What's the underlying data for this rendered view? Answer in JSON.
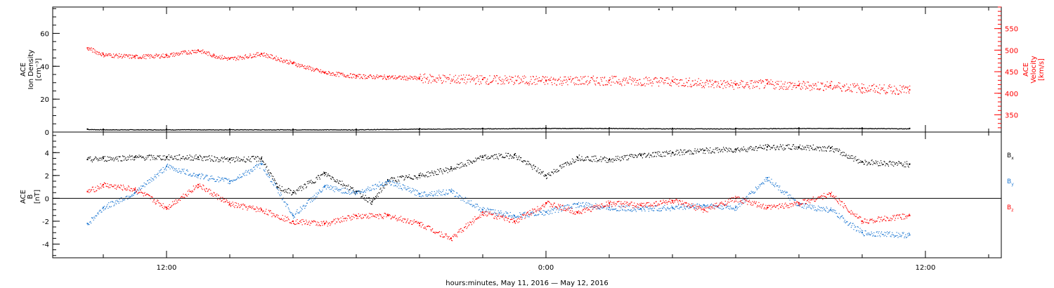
{
  "chart_data": [
    {
      "type": "scatter",
      "panel": "top",
      "ylabel_lines": [
        "ACE",
        "Ion Density",
        "[cm⁻³]"
      ],
      "ylim": [
        0,
        76
      ],
      "yticks": [
        0,
        20,
        40,
        60
      ],
      "y2label_lines": [
        "ACE",
        "Velocity",
        "[km/s]"
      ],
      "y2lim": [
        310,
        600
      ],
      "y2ticks": [
        350,
        400,
        450,
        500,
        550
      ],
      "series": [
        {
          "color": "#000000",
          "axis": "left",
          "x": [
            9.5,
            10,
            12,
            14,
            16,
            18,
            20,
            22,
            24,
            26,
            28,
            30,
            32,
            34,
            35.5
          ],
          "values": [
            1.8,
            1.6,
            1.6,
            1.6,
            1.6,
            1.6,
            2.0,
            2.2,
            2.4,
            2.4,
            2.2,
            2.2,
            2.4,
            2.4,
            2.2
          ]
        },
        {
          "color": "#ff0000",
          "axis": "right",
          "x": [
            9.5,
            10,
            11,
            12,
            13,
            13.5,
            14,
            15,
            16,
            17,
            18,
            19,
            20,
            22,
            24,
            26,
            28,
            30,
            31,
            32,
            33,
            34,
            35.5
          ],
          "values": [
            505,
            490,
            485,
            488,
            500,
            488,
            480,
            492,
            470,
            448,
            440,
            438,
            435,
            432,
            430,
            430,
            428,
            420,
            422,
            418,
            418,
            412,
            408
          ]
        }
      ]
    },
    {
      "type": "scatter",
      "panel": "bottom",
      "ylabel_lines": [
        "ACE",
        "B",
        "[nT]"
      ],
      "ylim": [
        -5.2,
        5.8
      ],
      "yticks": [
        -4,
        -2,
        0,
        2,
        4
      ],
      "zero_line": true,
      "series": [
        {
          "name": "B",
          "sub": "x",
          "color": "#000000",
          "x": [
            9.5,
            10,
            11,
            12,
            13,
            14,
            15,
            15.5,
            16,
            17,
            18,
            18.5,
            19,
            20,
            21,
            22,
            23,
            24,
            25,
            26,
            27,
            28,
            29,
            30,
            31,
            32,
            33,
            34,
            35.5
          ],
          "values": [
            3.4,
            3.5,
            3.6,
            3.6,
            3.6,
            3.4,
            3.5,
            1.0,
            0.5,
            2.2,
            0.6,
            -0.3,
            1.6,
            2.0,
            2.6,
            3.6,
            3.8,
            2.0,
            3.6,
            3.4,
            3.8,
            4.0,
            4.2,
            4.3,
            4.5,
            4.5,
            4.4,
            3.2,
            3.0
          ]
        },
        {
          "name": "B",
          "sub": "y",
          "color": "#1e78d2",
          "x": [
            9.5,
            10,
            11,
            12,
            13,
            14,
            15,
            16,
            17,
            18,
            19,
            20,
            21,
            22,
            23,
            24,
            25,
            26,
            27,
            28,
            29,
            30,
            31,
            32,
            33,
            34,
            35.5
          ],
          "values": [
            -2.2,
            -0.8,
            0.5,
            2.8,
            2.0,
            1.5,
            3.0,
            -1.5,
            1.0,
            0.5,
            1.5,
            0.4,
            0.6,
            -1.0,
            -1.5,
            -1.2,
            -0.5,
            -0.8,
            -0.9,
            -0.8,
            -0.6,
            -0.8,
            1.8,
            -0.6,
            -1.0,
            -3.0,
            -3.2
          ]
        },
        {
          "name": "B",
          "sub": "z",
          "color": "#ff0000",
          "x": [
            9.5,
            10,
            11,
            12,
            13,
            14,
            15,
            16,
            17,
            18,
            19,
            20,
            21,
            22,
            23,
            24,
            25,
            26,
            27,
            28,
            29,
            30,
            31,
            32,
            33,
            34,
            35.5
          ],
          "values": [
            0.6,
            1.2,
            0.8,
            -0.8,
            1.2,
            -0.5,
            -1.0,
            -2.0,
            -2.2,
            -1.5,
            -1.5,
            -2.2,
            -3.5,
            -1.2,
            -2.0,
            -0.4,
            -1.2,
            -0.4,
            -0.6,
            -0.2,
            -1.0,
            0.0,
            -0.8,
            -0.4,
            0.4,
            -2.0,
            -1.5
          ]
        }
      ]
    }
  ],
  "x_axis": {
    "label": "hours:minutes, May 11, 2016 — May 12, 2016",
    "range_hours": [
      8.4,
      38.4
    ],
    "major_ticks": [
      {
        "hour": 12,
        "label": "12:00"
      },
      {
        "hour": 24,
        "label": "0:00"
      },
      {
        "hour": 36,
        "label": "12:00"
      }
    ],
    "minor_ticks_hours": [
      10,
      14,
      16,
      18,
      20,
      22,
      26,
      28,
      30,
      32,
      34,
      38
    ]
  },
  "stray_point": {
    "x": 27.55,
    "value": 75
  }
}
